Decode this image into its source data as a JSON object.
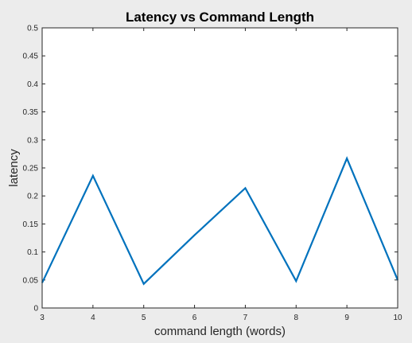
{
  "chart_data": {
    "type": "line",
    "title": "Latency vs Command Length",
    "xlabel": "command length (words)",
    "ylabel": "latency",
    "xlim": [
      3,
      10
    ],
    "ylim": [
      0,
      0.5
    ],
    "x_ticks": [
      "3",
      "4",
      "5",
      "6",
      "7",
      "8",
      "9",
      "10"
    ],
    "y_ticks": [
      "0",
      "0.05",
      "0.1",
      "0.15",
      "0.2",
      "0.25",
      "0.3",
      "0.35",
      "0.4",
      "0.45",
      "0.5"
    ],
    "grid": false,
    "series": [
      {
        "x": [
          3,
          4,
          5,
          6,
          7,
          8,
          9,
          10
        ],
        "values": [
          0.045,
          0.236,
          0.043,
          0.13,
          0.214,
          0.048,
          0.267,
          0.05
        ]
      }
    ]
  },
  "colors": {
    "line": "#0072BD",
    "figure_background": "#ececec",
    "axes_background": "#ffffff",
    "axis": "#262626"
  }
}
